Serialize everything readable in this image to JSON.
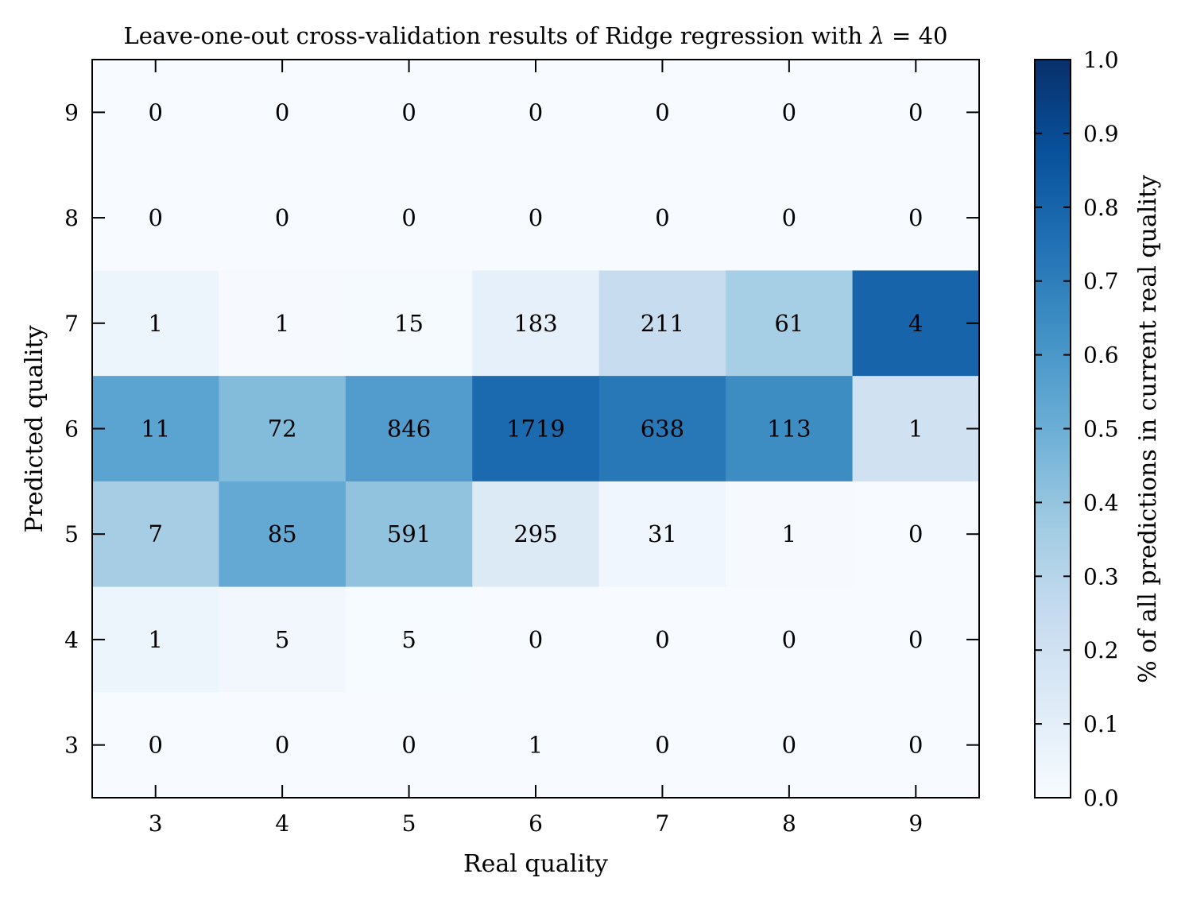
{
  "chart_data": {
    "type": "heatmap",
    "title_prefix": "Leave-one-out cross-validation results of Ridge regression with ",
    "title_symbol": "λ",
    "title_suffix": " = 40",
    "xlabel": "Real quality",
    "ylabel": "Predicted quality",
    "x_categories": [
      "3",
      "4",
      "5",
      "6",
      "7",
      "8",
      "9"
    ],
    "y_categories": [
      "9",
      "8",
      "7",
      "6",
      "5",
      "4",
      "3"
    ],
    "counts": [
      [
        0,
        0,
        0,
        0,
        0,
        0,
        0
      ],
      [
        0,
        0,
        0,
        0,
        0,
        0,
        0
      ],
      [
        1,
        1,
        15,
        183,
        211,
        61,
        4
      ],
      [
        11,
        72,
        846,
        1719,
        638,
        113,
        1
      ],
      [
        7,
        85,
        591,
        295,
        31,
        1,
        0
      ],
      [
        1,
        5,
        5,
        0,
        0,
        0,
        0
      ],
      [
        0,
        0,
        0,
        1,
        0,
        0,
        0
      ]
    ],
    "colorbar": {
      "label": "% of all predictions in current real quality",
      "ticks": [
        "0.0",
        "0.1",
        "0.2",
        "0.3",
        "0.4",
        "0.5",
        "0.6",
        "0.7",
        "0.8",
        "0.9",
        "1.0"
      ],
      "range": [
        0,
        1
      ],
      "colormap": "Blues",
      "colors": [
        "#f7fbff",
        "#deebf7",
        "#c6dbef",
        "#9ecae1",
        "#6baed6",
        "#4292c6",
        "#2171b5",
        "#08519c",
        "#08306b"
      ]
    }
  }
}
